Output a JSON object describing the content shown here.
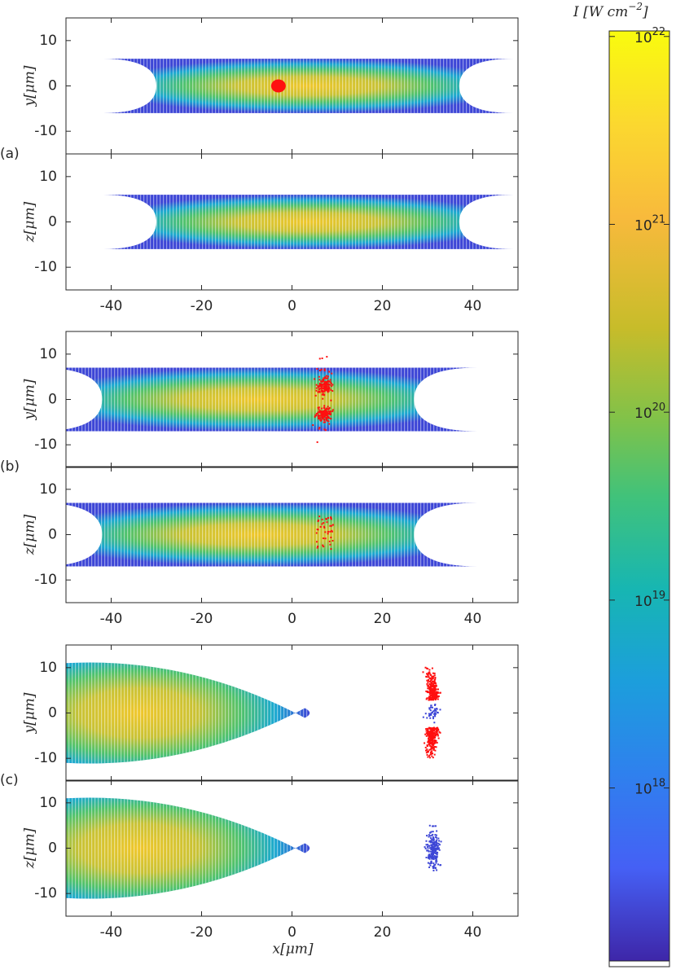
{
  "chart_data": {
    "type": "heatmap",
    "panel_labels": [
      "(a)",
      "(b)",
      "(c)"
    ],
    "xlabel": "x[μm]",
    "xlim": [
      -50,
      50
    ],
    "xticks": [
      -40,
      -20,
      0,
      20,
      40
    ],
    "ylim": [
      15,
      -15
    ],
    "yticks": [
      -10,
      0,
      10
    ],
    "panels": [
      {
        "ylabel": "y[μm]"
      },
      {
        "ylabel": "z[μm]"
      },
      {
        "ylabel": "y[μm]"
      },
      {
        "ylabel": "z[μm]"
      },
      {
        "ylabel": "y[μm]"
      },
      {
        "ylabel": "z[μm]"
      }
    ],
    "colorbar": {
      "title": "I [W cm",
      "title_exponent": "−2",
      "title_close": "]",
      "log_scale": true,
      "clim": [
        1.2e+17,
        1.07e+22
      ],
      "ticks": [
        {
          "value": 1e+22,
          "base": "10",
          "exponent": "22"
        },
        {
          "value": 1e+21,
          "base": "10",
          "exponent": "21"
        },
        {
          "value": 1e+20,
          "base": "10",
          "exponent": "20"
        },
        {
          "value": 1e+19,
          "base": "10",
          "exponent": "19"
        },
        {
          "value": 1e+18,
          "base": "10",
          "exponent": "18"
        }
      ]
    }
  }
}
